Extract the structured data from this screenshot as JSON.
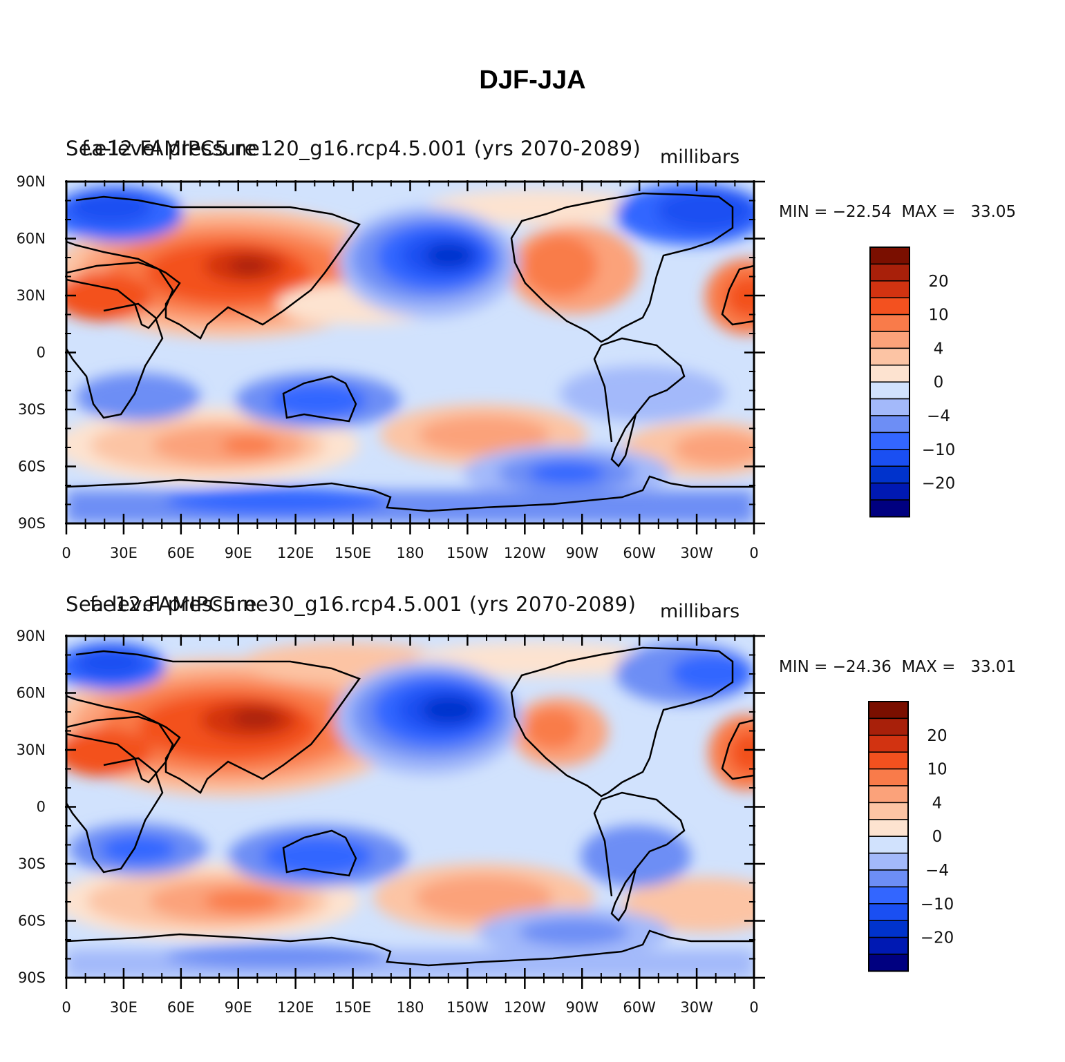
{
  "title": "DJF-JJA",
  "colors": [
    "#000080",
    "#0019b3",
    "#0033cc",
    "#1a4ff2",
    "#3366ff",
    "#6d8ef5",
    "#a3b9fa",
    "#d1e2fd",
    "#fde3d0",
    "#fcc4a4",
    "#fba27a",
    "#f97b4a",
    "#f3511f",
    "#d23311",
    "#a8200a",
    "#7a0f00"
  ],
  "colorbar_labels": [
    "20",
    "10",
    "4",
    "0",
    "−4",
    "−10",
    "−20"
  ],
  "lat_ticks": [
    "90N",
    "60N",
    "30N",
    "0",
    "30S",
    "60S",
    "90S"
  ],
  "lon_ticks": [
    "0",
    "30E",
    "60E",
    "90E",
    "120E",
    "150E",
    "180",
    "150W",
    "120W",
    "90W",
    "60W",
    "30W",
    "0"
  ],
  "panels": [
    {
      "left_title": "Sea-level pressure",
      "center_title": "f.e12.FAMIPC5.ne120_g16.rcp4.5.001 (yrs 2070-2089)",
      "units": "millibars",
      "minmax": "MIN = −22.54  MAX =   33.05"
    },
    {
      "left_title": "Sea-level pressure",
      "center_title": "f.e12.FAMIPC5.ne30_g16.rcp4.5.001 (yrs 2070-2089)",
      "units": "millibars",
      "minmax": "MIN = −24.36  MAX =   33.01"
    }
  ]
}
